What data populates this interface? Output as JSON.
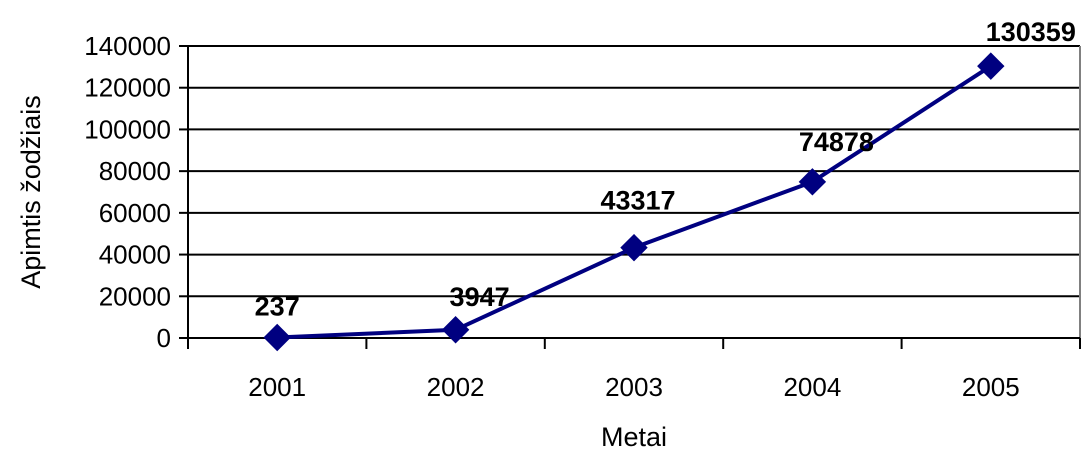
{
  "chart_data": {
    "type": "line",
    "title": "",
    "xlabel": "Metai",
    "ylabel": "Apimtis žodžiais",
    "categories": [
      "2001",
      "2002",
      "2003",
      "2004",
      "2005"
    ],
    "series": [
      {
        "values": [
          237,
          3947,
          43317,
          74878,
          130359
        ],
        "color": "#000080"
      }
    ],
    "data_labels": [
      "237",
      "3947",
      "43317",
      "74878",
      "130359"
    ],
    "y_ticks": [
      "0",
      "20000",
      "40000",
      "60000",
      "80000",
      "100000",
      "120000",
      "140000"
    ],
    "ylim": [
      0,
      140000
    ],
    "grid": true,
    "legend": "none",
    "marker": "diamond"
  }
}
